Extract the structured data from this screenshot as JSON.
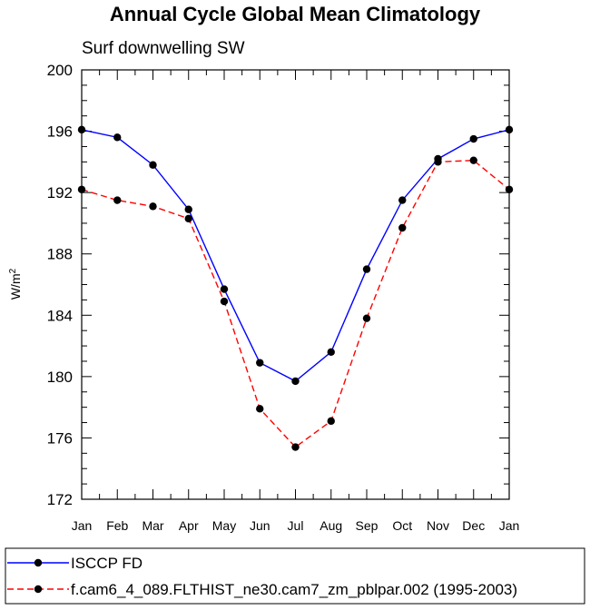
{
  "chart_data": {
    "type": "line",
    "title": "Annual Cycle Global Mean Climatology",
    "subtitle": "Surf downwelling SW",
    "xlabel": "",
    "ylabel": "W/m",
    "ylabel_sup": "2",
    "categories": [
      "Jan",
      "Feb",
      "Mar",
      "Apr",
      "May",
      "Jun",
      "Jul",
      "Aug",
      "Sep",
      "Oct",
      "Nov",
      "Dec",
      "Jan"
    ],
    "ylim": [
      172,
      200
    ],
    "yticks": [
      172,
      176,
      180,
      184,
      188,
      192,
      196,
      200
    ],
    "y_minor_step": 1,
    "series": [
      {
        "name": "ISCCP FD",
        "color": "#0000ff",
        "dash": "solid",
        "values": [
          196.1,
          195.6,
          193.8,
          190.9,
          185.7,
          180.9,
          179.7,
          181.6,
          187.0,
          191.5,
          194.2,
          195.5,
          196.1
        ]
      },
      {
        "name": "f.cam6_4_089.FLTHIST_ne30.cam7_zm_pblpar.002 (1995-2003)",
        "color": "#ff0000",
        "dash": "dashed",
        "values": [
          192.2,
          191.5,
          191.1,
          190.3,
          184.9,
          177.9,
          175.4,
          177.1,
          183.8,
          189.7,
          194.0,
          194.1,
          192.2
        ]
      }
    ]
  }
}
